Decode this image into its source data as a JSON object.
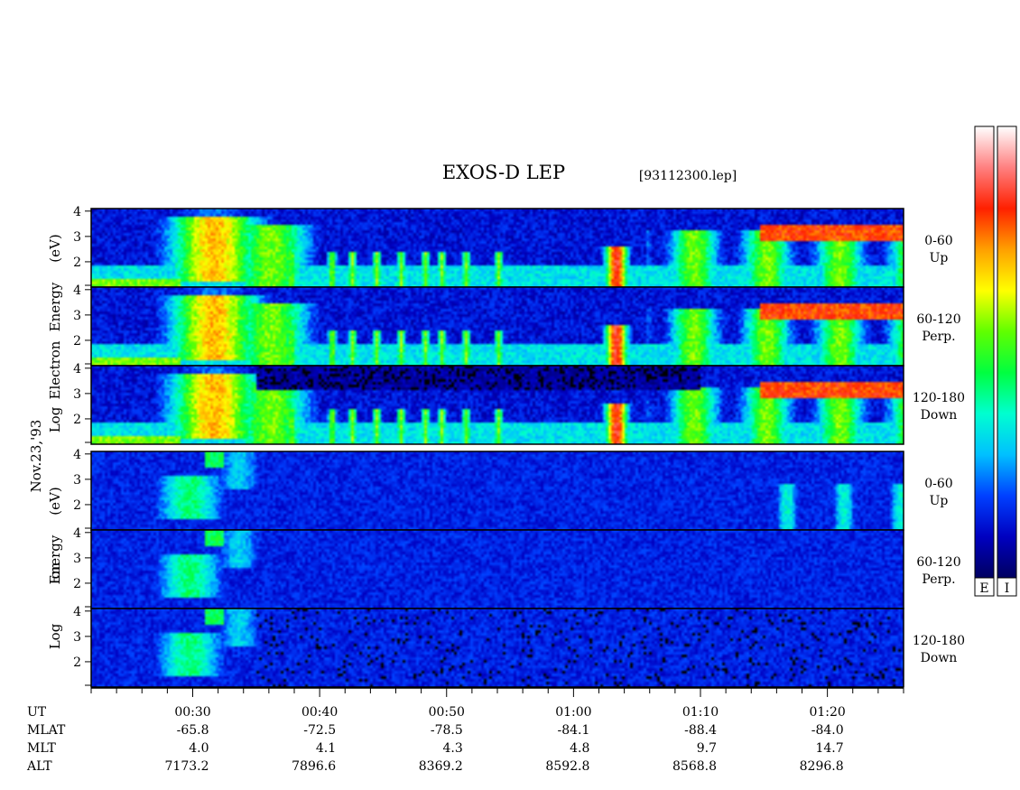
{
  "chart_data": {
    "type": "heatmap",
    "title": "EXOS-D LEP",
    "file_label": "[93112300.lep]",
    "date_label": "Nov.23,'93",
    "x_range_minutes": [
      22,
      86
    ],
    "x_ticks": [
      "00:30",
      "00:40",
      "00:50",
      "01:00",
      "01:10",
      "01:20"
    ],
    "x_tick_minutes": [
      30,
      40,
      50,
      60,
      70,
      80
    ],
    "y_ticks": [
      "4",
      "3",
      "2"
    ],
    "y_range": [
      1,
      4.1
    ],
    "species": [
      {
        "name": "electron",
        "ylabel": "Log Electron Energy (eV)",
        "ylabel_parts": [
          "Log",
          "Electron",
          "Energy",
          "(eV)"
        ]
      },
      {
        "name": "ion",
        "ylabel": "Log Ion Energy (eV)",
        "ylabel_parts": [
          "Log",
          "Ion",
          "Energy",
          "(eV)"
        ]
      }
    ],
    "channels": [
      {
        "range": "0-60",
        "dir": "Up"
      },
      {
        "range": "60-120",
        "dir": "Perp."
      },
      {
        "range": "120-180",
        "dir": "Down"
      }
    ],
    "colorbars": [
      {
        "label": "E"
      },
      {
        "label": "I"
      }
    ],
    "colorscale": [
      "#000060",
      "#0000c0",
      "#0040ff",
      "#00c0ff",
      "#00ffd0",
      "#00ff40",
      "#60ff00",
      "#ffff00",
      "#ffa000",
      "#ff2000",
      "#ff8080",
      "#ffffff"
    ],
    "footer": {
      "labels": [
        "UT",
        "MLAT",
        "MLT",
        "ALT"
      ],
      "columns": [
        {
          "ut": "00:30",
          "mlat": "-65.8",
          "mlt": "4.0",
          "alt": "7173.2"
        },
        {
          "ut": "00:40",
          "mlat": "-72.5",
          "mlt": "4.1",
          "alt": "7896.6"
        },
        {
          "ut": "00:50",
          "mlat": "-78.5",
          "mlt": "4.3",
          "alt": "8369.2"
        },
        {
          "ut": "01:00",
          "mlat": "-84.1",
          "mlt": "4.8",
          "alt": "8592.8"
        },
        {
          "ut": "01:10",
          "mlat": "-88.4",
          "mlt": "9.7",
          "alt": "8568.8"
        },
        {
          "ut": "01:20",
          "mlat": "-84.0",
          "mlt": "14.7",
          "alt": "8296.8"
        }
      ]
    }
  }
}
